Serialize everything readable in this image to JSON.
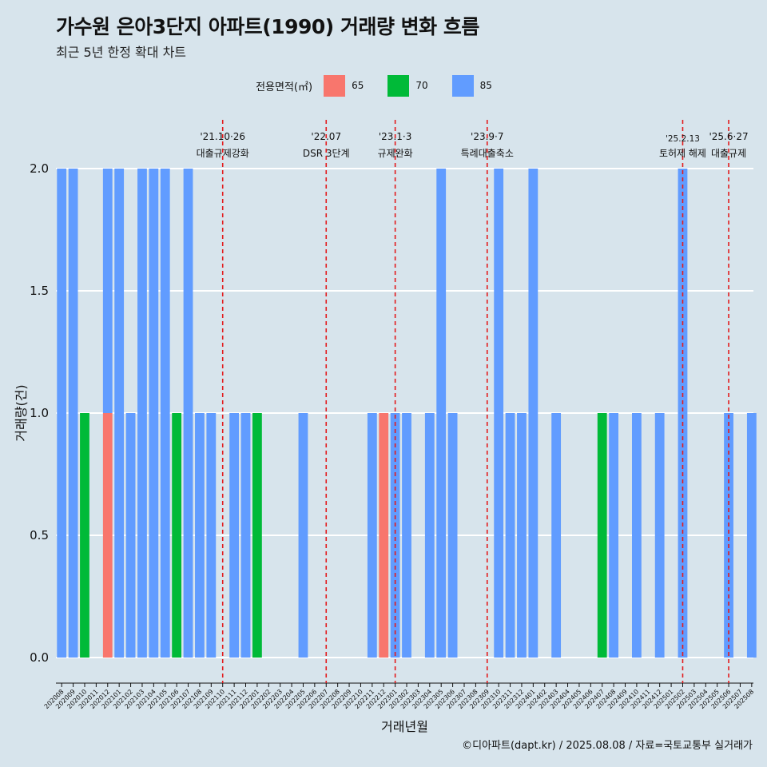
{
  "header": {
    "title": "가수원 은아3단지 아파트(1990) 거래량 변화 흐름",
    "subtitle": "최근 5년 한정 확대 차트"
  },
  "legend": {
    "title": "전용면적(㎡)",
    "items": [
      {
        "label": "65",
        "color": "#f8766d"
      },
      {
        "label": "70",
        "color": "#00ba38"
      },
      {
        "label": "85",
        "color": "#619cff"
      }
    ]
  },
  "caption": "©디아파트(dapt.kr) / 2025.08.08 / 자료=국토교통부 실거래가",
  "chart_data": {
    "type": "bar",
    "stacked": true,
    "xlabel": "거래년월",
    "ylabel": "거래량(건)",
    "ylim": [
      0,
      2
    ],
    "yticks": [
      "0.0",
      "0.5",
      "1.0",
      "1.5",
      "2.0"
    ],
    "grid": "horizontal",
    "legend_position": "top",
    "categories": [
      "202008",
      "202009",
      "202010",
      "202011",
      "202012",
      "202101",
      "202102",
      "202103",
      "202104",
      "202105",
      "202106",
      "202107",
      "202108",
      "202109",
      "202110",
      "202111",
      "202112",
      "202201",
      "202202",
      "202203",
      "202204",
      "202205",
      "202206",
      "202207",
      "202208",
      "202209",
      "202210",
      "202211",
      "202212",
      "202301",
      "202302",
      "202303",
      "202304",
      "202305",
      "202306",
      "202307",
      "202308",
      "202309",
      "202310",
      "202311",
      "202312",
      "202401",
      "202402",
      "202403",
      "202404",
      "202405",
      "202406",
      "202407",
      "202408",
      "202409",
      "202410",
      "202411",
      "202412",
      "202501",
      "202502",
      "202503",
      "202504",
      "202505",
      "202506",
      "202507",
      "202508"
    ],
    "series": [
      {
        "name": "65",
        "color": "#f8766d",
        "values": [
          0,
          0,
          0,
          0,
          1,
          0,
          0,
          0,
          0,
          0,
          0,
          0,
          0,
          0,
          0,
          0,
          0,
          0,
          0,
          0,
          0,
          0,
          0,
          0,
          0,
          0,
          0,
          0,
          1,
          0,
          0,
          0,
          0,
          0,
          0,
          0,
          0,
          0,
          0,
          0,
          0,
          0,
          0,
          0,
          0,
          0,
          0,
          0,
          0,
          0,
          0,
          0,
          0,
          0,
          0,
          0,
          0,
          0,
          0,
          0,
          0
        ]
      },
      {
        "name": "70",
        "color": "#00ba38",
        "values": [
          0,
          0,
          1,
          0,
          0,
          0,
          0,
          0,
          0,
          0,
          1,
          0,
          0,
          0,
          0,
          0,
          0,
          1,
          0,
          0,
          0,
          0,
          0,
          0,
          0,
          0,
          0,
          0,
          0,
          0,
          0,
          0,
          0,
          0,
          0,
          0,
          0,
          0,
          0,
          0,
          0,
          0,
          0,
          0,
          0,
          0,
          0,
          1,
          0,
          0,
          0,
          0,
          0,
          0,
          0,
          0,
          0,
          0,
          0,
          0,
          0
        ]
      },
      {
        "name": "85",
        "color": "#619cff",
        "values": [
          2,
          2,
          0,
          0,
          1,
          2,
          1,
          2,
          2,
          2,
          0,
          2,
          1,
          1,
          0,
          1,
          1,
          0,
          0,
          0,
          0,
          1,
          0,
          0,
          0,
          0,
          0,
          1,
          0,
          1,
          1,
          0,
          1,
          2,
          1,
          0,
          0,
          0,
          2,
          1,
          1,
          2,
          0,
          1,
          0,
          0,
          0,
          0,
          1,
          0,
          1,
          0,
          1,
          0,
          2,
          0,
          0,
          0,
          1,
          0,
          1
        ]
      }
    ],
    "annotations": [
      {
        "month": "202110",
        "date": "'21.10·26",
        "label": "대출규제강화"
      },
      {
        "month": "202207",
        "date": "'22.07",
        "label": "DSR 3단계"
      },
      {
        "month": "202301",
        "date": "'23.1·3",
        "label": "규제완화"
      },
      {
        "month": "202309",
        "date": "'23.9·7",
        "label": "특례대출축소"
      },
      {
        "month": "202502",
        "date": "'25.2.13",
        "label": "토허제 해제"
      },
      {
        "month": "202506",
        "date": "'25.6·27",
        "label": "대출규제"
      }
    ],
    "annotation_line_color": "#e31a1c"
  }
}
